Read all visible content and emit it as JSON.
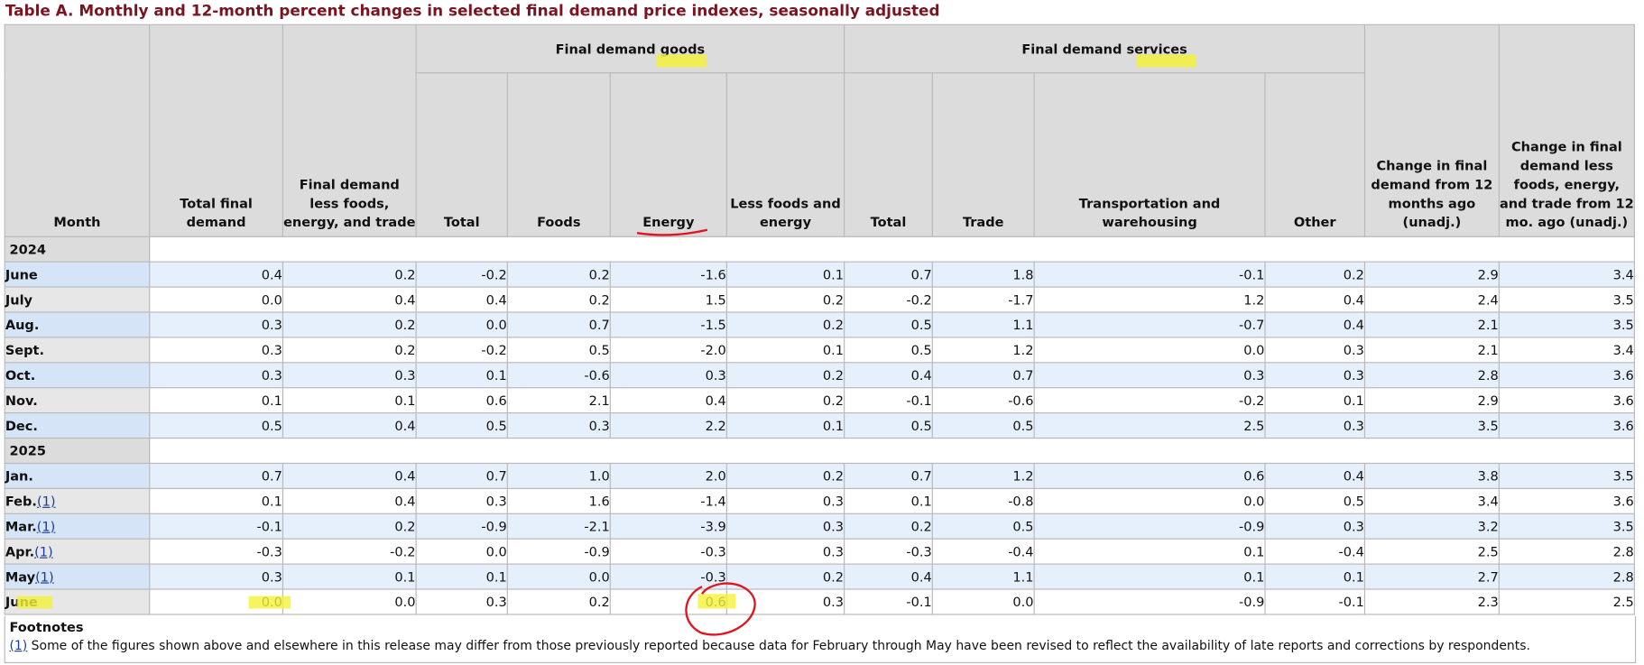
{
  "title": "Table A. Monthly and 12-month percent changes in selected final demand price indexes, seasonally adjusted",
  "headers": {
    "month": "Month",
    "total_final_demand": "Total final demand",
    "fd_less": "Final demand less foods, energy, and trade",
    "goods_group": "Final demand goods",
    "services_group": "Final demand services",
    "goods_total": "Total",
    "goods_foods": "Foods",
    "goods_energy": "Energy",
    "goods_less": "Less foods and energy",
    "serv_total": "Total",
    "serv_trade": "Trade",
    "serv_transport": "Transportation and warehousing",
    "serv_other": "Other",
    "change12": "Change in final demand from 12 months ago (unadj.)",
    "change12_less": "Change in final demand less foods, energy, and trade from 12 mo. ago (unadj.)"
  },
  "years": [
    "2024",
    "2025"
  ],
  "rows2024": [
    {
      "m": "June",
      "fn": "",
      "v": [
        "0.4",
        "0.2",
        "-0.2",
        "0.2",
        "-1.6",
        "0.1",
        "0.7",
        "1.8",
        "-0.1",
        "0.2",
        "2.9",
        "3.4"
      ]
    },
    {
      "m": "July",
      "fn": "",
      "v": [
        "0.0",
        "0.4",
        "0.4",
        "0.2",
        "1.5",
        "0.2",
        "-0.2",
        "-1.7",
        "1.2",
        "0.4",
        "2.4",
        "3.5"
      ]
    },
    {
      "m": "Aug.",
      "fn": "",
      "v": [
        "0.3",
        "0.2",
        "0.0",
        "0.7",
        "-1.5",
        "0.2",
        "0.5",
        "1.1",
        "-0.7",
        "0.4",
        "2.1",
        "3.5"
      ]
    },
    {
      "m": "Sept.",
      "fn": "",
      "v": [
        "0.3",
        "0.2",
        "-0.2",
        "0.5",
        "-2.0",
        "0.1",
        "0.5",
        "1.2",
        "0.0",
        "0.3",
        "2.1",
        "3.4"
      ]
    },
    {
      "m": "Oct.",
      "fn": "",
      "v": [
        "0.3",
        "0.3",
        "0.1",
        "-0.6",
        "0.3",
        "0.2",
        "0.4",
        "0.7",
        "0.3",
        "0.3",
        "2.8",
        "3.6"
      ]
    },
    {
      "m": "Nov.",
      "fn": "",
      "v": [
        "0.1",
        "0.1",
        "0.6",
        "2.1",
        "0.4",
        "0.2",
        "-0.1",
        "-0.6",
        "-0.2",
        "0.1",
        "2.9",
        "3.6"
      ]
    },
    {
      "m": "Dec.",
      "fn": "",
      "v": [
        "0.5",
        "0.4",
        "0.5",
        "0.3",
        "2.2",
        "0.1",
        "0.5",
        "0.5",
        "2.5",
        "0.3",
        "3.5",
        "3.6"
      ]
    }
  ],
  "rows2025": [
    {
      "m": "Jan.",
      "fn": "",
      "v": [
        "0.7",
        "0.4",
        "0.7",
        "1.0",
        "2.0",
        "0.2",
        "0.7",
        "1.2",
        "0.6",
        "0.4",
        "3.8",
        "3.5"
      ]
    },
    {
      "m": "Feb.",
      "fn": "(1)",
      "v": [
        "0.1",
        "0.4",
        "0.3",
        "1.6",
        "-1.4",
        "0.3",
        "0.1",
        "-0.8",
        "0.0",
        "0.5",
        "3.4",
        "3.6"
      ]
    },
    {
      "m": "Mar.",
      "fn": "(1)",
      "v": [
        "-0.1",
        "0.2",
        "-0.9",
        "-2.1",
        "-3.9",
        "0.3",
        "0.2",
        "0.5",
        "-0.9",
        "0.3",
        "3.2",
        "3.5"
      ]
    },
    {
      "m": "Apr.",
      "fn": "(1)",
      "v": [
        "-0.3",
        "-0.2",
        "0.0",
        "-0.9",
        "-0.3",
        "0.3",
        "-0.3",
        "-0.4",
        "0.1",
        "-0.4",
        "2.5",
        "2.8"
      ]
    },
    {
      "m": "May",
      "fn": "(1)",
      "v": [
        "0.3",
        "0.1",
        "0.1",
        "0.0",
        "-0.3",
        "0.2",
        "0.4",
        "1.1",
        "0.1",
        "0.1",
        "2.7",
        "2.8"
      ]
    },
    {
      "m": "June",
      "fn": "",
      "v": [
        "0.0",
        "0.0",
        "0.3",
        "0.2",
        "0.6",
        "0.3",
        "-0.1",
        "0.0",
        "-0.9",
        "-0.1",
        "2.3",
        "2.5"
      ]
    }
  ],
  "footnotes": {
    "title": "Footnotes",
    "link": "(1)",
    "text": " Some of the figures shown above and elsewhere in this release may differ from those previously reported because data for February through May have been revised to reflect the availability of late reports and corrections by respondents."
  },
  "colors": {
    "title": "#7a1420",
    "header_bg": "#dcdcdc",
    "row_blue": "#e6effc",
    "highlight": "#f5f13b",
    "annotation_red": "#e0141e"
  }
}
